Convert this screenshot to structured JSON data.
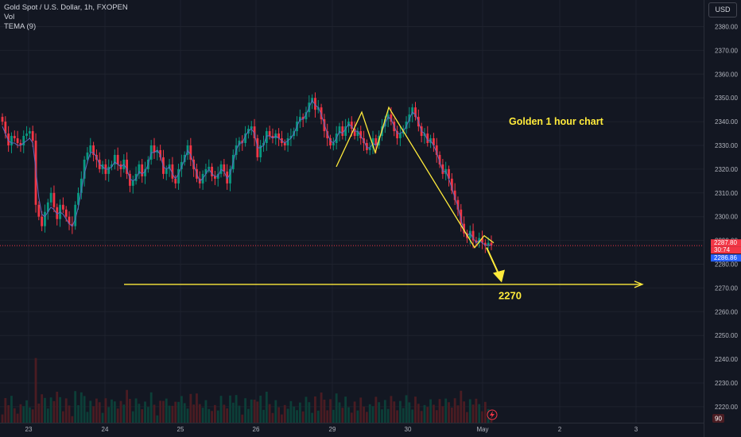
{
  "legend": {
    "symbol": "Gold Spot / U.S. Dollar, 1h, FXOPEN",
    "vol": "Vol",
    "tema": "TEMA (9)"
  },
  "currency_button": "USD",
  "chart_data": {
    "type": "candlestick",
    "title": "",
    "annotations": [
      {
        "text": "Golden 1 hour chart",
        "x": "Apr 30",
        "y": 2340
      },
      {
        "text": "2270",
        "x": "May 1",
        "y": 2267
      }
    ],
    "target_line": {
      "y": 2271.5,
      "from": "Apr 24",
      "to": "May 3"
    },
    "current_price_line": 2287.8,
    "price_labels": {
      "last": "2287.80",
      "countdown": "30:74",
      "bid": "2286.86"
    },
    "volume_label": "90",
    "ylim": [
      2213,
      2392
    ],
    "y_ticks": [
      2380.0,
      2370.0,
      2360.0,
      2350.0,
      2340.0,
      2330.0,
      2320.0,
      2310.0,
      2300.0,
      2290.0,
      2280.0,
      2270.0,
      2260.0,
      2250.0,
      2240.0,
      2230.0,
      2220.0
    ],
    "y_tick_labels": [
      "2380.00",
      "2370.00",
      "2360.00",
      "2350.00",
      "2340.00",
      "2330.00",
      "2320.00",
      "2310.00",
      "2300.00",
      "2290.00",
      "2280.00",
      "2270.00",
      "2260.00",
      "2250.00",
      "2240.00",
      "2230.00",
      "2220.00"
    ],
    "x_ticks": [
      "23",
      "24",
      "25",
      "26",
      "29",
      "30",
      "May",
      "2",
      "3"
    ],
    "colors": {
      "up": "#089981",
      "down": "#f23645",
      "tema": "#5c6bc0",
      "annotation": "#ffeb3b",
      "price_line": "#f23645",
      "bid": "#2962ff",
      "volume_up": "#0c3f38",
      "volume_down": "#4a1c22"
    },
    "pattern": {
      "type": "double-top",
      "points": [
        [
          2321,
          "Apr 29"
        ],
        [
          2344,
          "Apr 29"
        ],
        [
          2327,
          "Apr 29"
        ],
        [
          2346,
          "Apr 30"
        ],
        [
          2287,
          "May 1"
        ],
        [
          2292,
          "May 1"
        ],
        [
          2289,
          "May 1"
        ]
      ]
    },
    "closes": [
      2340,
      2335,
      2330,
      2334,
      2333,
      2331,
      2330,
      2334,
      2335,
      2336,
      2332,
      2305,
      2300,
      2296,
      2302,
      2306,
      2310,
      2304,
      2299,
      2305,
      2303,
      2300,
      2297,
      2296,
      2305,
      2310,
      2316,
      2324,
      2327,
      2330,
      2326,
      2324,
      2320,
      2322,
      2318,
      2321,
      2322,
      2326,
      2322,
      2320,
      2324,
      2318,
      2313,
      2315,
      2318,
      2322,
      2317,
      2320,
      2324,
      2330,
      2327,
      2328,
      2325,
      2318,
      2320,
      2322,
      2316,
      2314,
      2320,
      2323,
      2326,
      2330,
      2324,
      2320,
      2316,
      2314,
      2318,
      2320,
      2321,
      2317,
      2316,
      2318,
      2322,
      2319,
      2314,
      2320,
      2326,
      2330,
      2332,
      2331,
      2335,
      2337,
      2338,
      2333,
      2325,
      2330,
      2331,
      2336,
      2334,
      2333,
      2335,
      2333,
      2331,
      2330,
      2333,
      2334,
      2336,
      2340,
      2342,
      2341,
      2344,
      2348,
      2350,
      2345,
      2346,
      2341,
      2336,
      2333,
      2330,
      2331,
      2335,
      2338,
      2334,
      2338,
      2340,
      2337,
      2334,
      2336,
      2333,
      2331,
      2328,
      2329,
      2333,
      2330,
      2334,
      2338,
      2341,
      2343,
      2340,
      2336,
      2333,
      2335,
      2337,
      2340,
      2343,
      2346,
      2342,
      2338,
      2334,
      2335,
      2331,
      2333,
      2330,
      2326,
      2322,
      2318,
      2320,
      2316,
      2311,
      2307,
      2303,
      2297,
      2293,
      2291,
      2294,
      2290,
      2289,
      2291,
      2289,
      2288,
      2289,
      2288
    ],
    "ma": [
      2338,
      2335,
      2332,
      2331,
      2331,
      2330,
      2330,
      2331,
      2332,
      2333,
      2331,
      2320,
      2308,
      2301,
      2300,
      2302,
      2304,
      2303,
      2301,
      2302,
      2301,
      2299,
      2297,
      2296,
      2299,
      2304,
      2311,
      2318,
      2323,
      2327,
      2327,
      2325,
      2322,
      2321,
      2320,
      2320,
      2321,
      2323,
      2322,
      2321,
      2322,
      2320,
      2316,
      2315,
      2316,
      2319,
      2318,
      2319,
      2322,
      2327,
      2327,
      2328,
      2326,
      2321,
      2320,
      2321,
      2318,
      2316,
      2318,
      2321,
      2324,
      2328,
      2326,
      2322,
      2318,
      2315,
      2316,
      2318,
      2320,
      2318,
      2317,
      2317,
      2320,
      2319,
      2316,
      2318,
      2323,
      2328,
      2331,
      2331,
      2334,
      2336,
      2337,
      2335,
      2329,
      2329,
      2330,
      2334,
      2334,
      2333,
      2334,
      2333,
      2332,
      2331,
      2332,
      2333,
      2335,
      2338,
      2341,
      2341,
      2343,
      2346,
      2349,
      2347,
      2346,
      2343,
      2339,
      2335,
      2332,
      2331,
      2333,
      2336,
      2335,
      2337,
      2339,
      2338,
      2336,
      2336,
      2334,
      2332,
      2329,
      2329,
      2331,
      2330,
      2332,
      2336,
      2339,
      2342,
      2341,
      2338,
      2335,
      2335,
      2336,
      2338,
      2341,
      2344,
      2343,
      2340,
      2336,
      2335,
      2332,
      2332,
      2330,
      2327,
      2323,
      2319,
      2319,
      2316,
      2312,
      2308,
      2304,
      2299,
      2294,
      2292,
      2293,
      2291,
      2289,
      2290,
      2289,
      2288,
      2288,
      2288
    ]
  }
}
